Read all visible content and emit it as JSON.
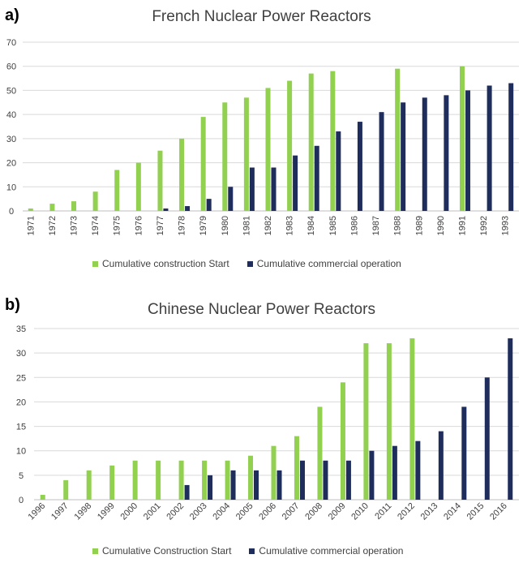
{
  "chart_data": [
    {
      "panel_label": "a)",
      "type": "bar",
      "title": "French Nuclear Power Reactors",
      "ylim": [
        0,
        70
      ],
      "yticks": [
        0,
        10,
        20,
        30,
        40,
        50,
        60,
        70
      ],
      "grid": true,
      "legend_position": "bottom",
      "categories": [
        "1971",
        "1972",
        "1973",
        "1974",
        "1975",
        "1976",
        "1977",
        "1978",
        "1979",
        "1980",
        "1981",
        "1982",
        "1983",
        "1984",
        "1985",
        "1986",
        "1987",
        "1988",
        "1989",
        "1990",
        "1991",
        "1992",
        "1993"
      ],
      "series": [
        {
          "name": "Cumulative construction Start",
          "color": "#92d050",
          "values": [
            1,
            3,
            4,
            8,
            17,
            20,
            25,
            30,
            39,
            45,
            47,
            51,
            54,
            57,
            58,
            null,
            null,
            59,
            null,
            null,
            60,
            null,
            null
          ]
        },
        {
          "name": "Cumulative commercial operation",
          "color": "#1f2d5c",
          "values": [
            null,
            null,
            null,
            null,
            null,
            null,
            1,
            2,
            5,
            10,
            18,
            18,
            23,
            27,
            33,
            37,
            41,
            45,
            47,
            48,
            50,
            52,
            53
          ]
        }
      ]
    },
    {
      "panel_label": "b)",
      "type": "bar",
      "title": "Chinese Nuclear Power Reactors",
      "ylim": [
        0,
        35
      ],
      "yticks": [
        0,
        5,
        10,
        15,
        20,
        25,
        30,
        35
      ],
      "grid": true,
      "legend_position": "bottom",
      "categories": [
        "1996",
        "1997",
        "1998",
        "1999",
        "2000",
        "2001",
        "2002",
        "2003",
        "2004",
        "2005",
        "2006",
        "2007",
        "2008",
        "2009",
        "2010",
        "2011",
        "2012",
        "2013",
        "2014",
        "2015",
        "2016"
      ],
      "series": [
        {
          "name": "Cumulative Construction Start",
          "color": "#92d050",
          "values": [
            1,
            4,
            6,
            7,
            8,
            8,
            8,
            8,
            8,
            9,
            11,
            13,
            19,
            24,
            32,
            32,
            33,
            null,
            null,
            null,
            null
          ]
        },
        {
          "name": "Cumulative commercial operation",
          "color": "#1f2d5c",
          "values": [
            null,
            null,
            null,
            null,
            null,
            null,
            3,
            5,
            6,
            6,
            6,
            8,
            8,
            8,
            10,
            11,
            12,
            14,
            19,
            25,
            33
          ]
        }
      ]
    }
  ]
}
